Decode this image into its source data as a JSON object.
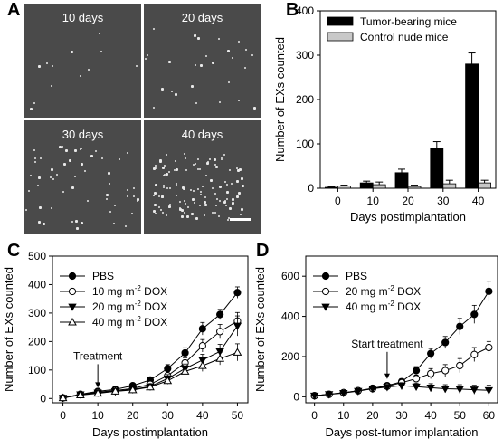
{
  "panels": {
    "a": {
      "letter": "A",
      "images": [
        {
          "label": "10 days",
          "density": 12
        },
        {
          "label": "20 days",
          "density": 28
        },
        {
          "label": "30 days",
          "density": 55
        },
        {
          "label": "40 days",
          "density": 120
        }
      ]
    },
    "b": {
      "letter": "B"
    },
    "c": {
      "letter": "C"
    },
    "d": {
      "letter": "D"
    }
  },
  "chart_data": [
    {
      "id": "B",
      "type": "bar",
      "xlabel": "Days postimplantation",
      "ylabel": "Number of EXs counted",
      "categories": [
        "0",
        "10",
        "20",
        "30",
        "40"
      ],
      "ylim": [
        0,
        400
      ],
      "yticks": [
        0,
        100,
        200,
        300,
        400
      ],
      "legend": "top-left",
      "series": [
        {
          "name": "Tumor-bearing mice",
          "color": "#000000",
          "values": [
            2,
            12,
            35,
            90,
            280
          ],
          "errors": [
            1,
            4,
            8,
            15,
            25
          ]
        },
        {
          "name": "Control nude mice",
          "color": "#c8c8c8",
          "values": [
            5,
            8,
            4,
            10,
            12
          ],
          "errors": [
            2,
            6,
            3,
            8,
            6
          ]
        }
      ]
    },
    {
      "id": "C",
      "type": "line",
      "xlabel": "Days postimplantation",
      "ylabel": "Number of EXs counted",
      "xlim": [
        -3,
        53
      ],
      "ylim": [
        -15,
        500
      ],
      "xticks": [
        0,
        10,
        20,
        30,
        40,
        50
      ],
      "yticks": [
        0,
        100,
        200,
        300,
        400,
        500
      ],
      "legend": "top-left",
      "annotation": {
        "text": "Treatment",
        "x": 10,
        "y": 25
      },
      "series": [
        {
          "name": "PBS",
          "marker": "circle-filled",
          "x": [
            0,
            5,
            10,
            15,
            20,
            25,
            30,
            35,
            40,
            45,
            50
          ],
          "y": [
            2,
            15,
            25,
            32,
            45,
            65,
            105,
            160,
            245,
            295,
            372
          ],
          "err": [
            4,
            5,
            5,
            6,
            8,
            10,
            14,
            18,
            22,
            18,
            20
          ]
        },
        {
          "name": "10 mg m⁻² DOX",
          "marker": "circle-open",
          "x": [
            0,
            5,
            10,
            15,
            20,
            25,
            30,
            35,
            40,
            45,
            50
          ],
          "y": [
            2,
            14,
            22,
            28,
            35,
            50,
            80,
            125,
            185,
            235,
            272
          ],
          "err": [
            4,
            5,
            5,
            6,
            7,
            10,
            14,
            18,
            22,
            25,
            30
          ]
        },
        {
          "name": "20 mg m⁻² DOX",
          "marker": "triangle-down-filled",
          "x": [
            0,
            5,
            10,
            15,
            20,
            25,
            30,
            35,
            40,
            45,
            50
          ],
          "y": [
            2,
            14,
            20,
            25,
            32,
            42,
            70,
            105,
            135,
            165,
            255
          ],
          "err": [
            4,
            5,
            5,
            6,
            7,
            10,
            14,
            16,
            20,
            25,
            35
          ]
        },
        {
          "name": "40 mg m⁻² DOX",
          "marker": "triangle-up-open",
          "x": [
            0,
            5,
            10,
            15,
            20,
            25,
            30,
            35,
            40,
            45,
            50
          ],
          "y": [
            2,
            12,
            18,
            25,
            30,
            40,
            62,
            95,
            115,
            140,
            162
          ],
          "err": [
            4,
            5,
            5,
            6,
            7,
            10,
            12,
            16,
            20,
            22,
            30
          ]
        }
      ]
    },
    {
      "id": "D",
      "type": "line",
      "xlabel": "Days post-tumor implantation",
      "ylabel": "Number of EXs counted",
      "xlim": [
        -3,
        63
      ],
      "ylim": [
        -30,
        700
      ],
      "xticks": [
        0,
        10,
        20,
        30,
        40,
        50,
        60
      ],
      "yticks": [
        0,
        200,
        400,
        600
      ],
      "legend": "top-left",
      "annotation": {
        "text": "Start treatment",
        "x": 25,
        "y": 70
      },
      "series": [
        {
          "name": "PBS",
          "marker": "circle-filled",
          "x": [
            0,
            5,
            10,
            15,
            20,
            25,
            30,
            35,
            40,
            45,
            50,
            55,
            60
          ],
          "y": [
            5,
            12,
            20,
            30,
            42,
            55,
            75,
            130,
            215,
            270,
            350,
            410,
            525
          ],
          "err": [
            6,
            6,
            6,
            8,
            8,
            10,
            15,
            20,
            25,
            30,
            40,
            45,
            50
          ]
        },
        {
          "name": "20 mg m⁻² DOX",
          "marker": "circle-open",
          "x": [
            0,
            5,
            10,
            15,
            20,
            25,
            30,
            35,
            40,
            45,
            50,
            55,
            60
          ],
          "y": [
            5,
            12,
            20,
            30,
            40,
            52,
            70,
            90,
            115,
            130,
            155,
            210,
            245
          ],
          "err": [
            6,
            6,
            6,
            8,
            8,
            10,
            12,
            18,
            25,
            30,
            35,
            35,
            30
          ]
        },
        {
          "name": "40 mg m⁻² DOX",
          "marker": "triangle-down-filled",
          "x": [
            0,
            5,
            10,
            15,
            20,
            25,
            30,
            35,
            40,
            45,
            50,
            55,
            60
          ],
          "y": [
            5,
            12,
            18,
            28,
            40,
            48,
            55,
            50,
            45,
            40,
            38,
            35,
            32
          ],
          "err": [
            6,
            6,
            6,
            8,
            8,
            10,
            15,
            18,
            20,
            20,
            22,
            22,
            25
          ]
        }
      ]
    }
  ]
}
